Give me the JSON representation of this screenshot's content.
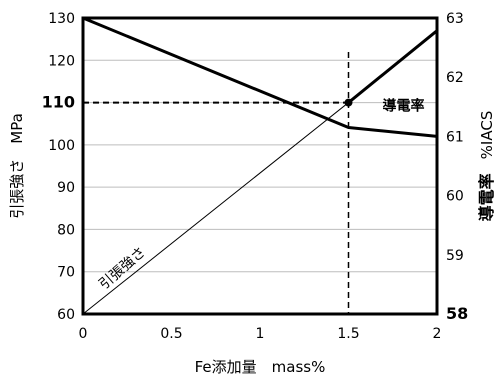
{
  "chart_data": {
    "type": "line",
    "xlabel": "Fe添加量　mass%",
    "ylabel_left": "引張強さ　MPa",
    "ylabel_right_prefix": "導電率",
    "ylabel_right_suffix": "%IACS",
    "x_ticks": [
      "0",
      "0.5",
      "1",
      "1.5",
      "2"
    ],
    "y_left_ticks": [
      "60",
      "70",
      "80",
      "90",
      "100",
      "110",
      "120",
      "130"
    ],
    "y_right_ticks": [
      "58",
      "59",
      "60",
      "61",
      "62",
      "63"
    ],
    "xlim": [
      0,
      2
    ],
    "ylim_left": [
      60,
      130
    ],
    "ylim_right": [
      58,
      63
    ],
    "grid": true,
    "series": [
      {
        "name": "引張強さ",
        "axis": "left",
        "x": [
          0,
          1.5
        ],
        "y": [
          60,
          110
        ]
      },
      {
        "name": "導電率",
        "axis": "right",
        "x": [
          0,
          1.5,
          2
        ],
        "y": [
          63,
          61.15,
          61.0
        ]
      },
      {
        "name": "",
        "axis": "left",
        "x": [
          1.5,
          2
        ],
        "y": [
          110,
          127
        ]
      }
    ],
    "reference": {
      "x": 1.5,
      "y_left": 110,
      "style": "dashed"
    },
    "highlight_ticks": {
      "left": "110",
      "right": "58"
    }
  }
}
